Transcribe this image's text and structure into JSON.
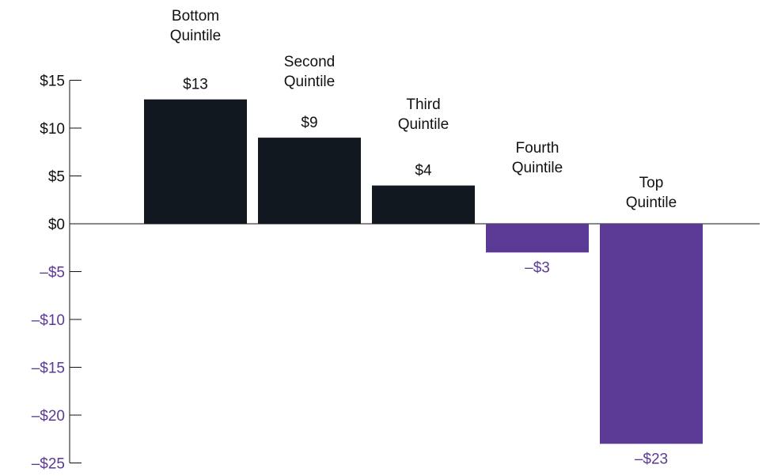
{
  "chart_data": {
    "type": "bar",
    "categories": [
      [
        "Bottom",
        "Quintile"
      ],
      [
        "Second",
        "Quintile"
      ],
      [
        "Third",
        "Quintile"
      ],
      [
        "Fourth",
        "Quintile"
      ],
      [
        "Top",
        "Quintile"
      ]
    ],
    "values": [
      13,
      9,
      4,
      -3,
      -23
    ],
    "value_labels": [
      "$13",
      "$9",
      "$4",
      "–$3",
      "–$23"
    ],
    "positive_color": "#121820",
    "negative_color": "#5b3a96",
    "ylim": [
      -25,
      15
    ],
    "yticks": [
      {
        "value": 15,
        "label": "$15"
      },
      {
        "value": 10,
        "label": "$10"
      },
      {
        "value": 5,
        "label": "$5"
      },
      {
        "value": 0,
        "label": "$0"
      },
      {
        "value": -5,
        "label": "–$5"
      },
      {
        "value": -10,
        "label": "–$10"
      },
      {
        "value": -15,
        "label": "–$15"
      },
      {
        "value": -20,
        "label": "–$20"
      },
      {
        "value": -25,
        "label": "–$25"
      }
    ]
  }
}
